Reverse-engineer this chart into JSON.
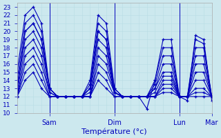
{
  "xlabel": "Température (°c)",
  "xlim": [
    0,
    72
  ],
  "ylim": [
    10,
    23.5
  ],
  "yticks": [
    10,
    11,
    12,
    13,
    14,
    15,
    16,
    17,
    18,
    19,
    20,
    21,
    22,
    23
  ],
  "xtick_positions": [
    12,
    36,
    60,
    72
  ],
  "xtick_labels": [
    "Sam",
    "Dim",
    "Lun",
    "Mar"
  ],
  "bg_color": "#cce8ee",
  "line_color": "#0000bb",
  "marker": "+",
  "series": [
    [
      0,
      15,
      3,
      22,
      6,
      23,
      9,
      21,
      12,
      13,
      15,
      12,
      18,
      12,
      21,
      12,
      24,
      12,
      27,
      14,
      30,
      22,
      33,
      21,
      36,
      13,
      39,
      12,
      42,
      12,
      45,
      12,
      48,
      10.5,
      51,
      14,
      54,
      19,
      57,
      19,
      60,
      12,
      63,
      11.5,
      66,
      19.5,
      69,
      19,
      72,
      11.5
    ],
    [
      0,
      14,
      3,
      21,
      6,
      22,
      9,
      20,
      12,
      13,
      15,
      12,
      18,
      12,
      21,
      12,
      24,
      12,
      27,
      13.5,
      30,
      21,
      33,
      20,
      36,
      13,
      39,
      12,
      42,
      12,
      45,
      12,
      48,
      12,
      51,
      14,
      54,
      18,
      57,
      18,
      60,
      12,
      63,
      12,
      66,
      19,
      69,
      18.5,
      72,
      12
    ],
    [
      0,
      13,
      3,
      20,
      6,
      21,
      9,
      19,
      12,
      13,
      15,
      12,
      18,
      12,
      21,
      12,
      24,
      12,
      27,
      13,
      30,
      20,
      33,
      19,
      36,
      12.5,
      39,
      12,
      42,
      12,
      45,
      12,
      48,
      12,
      51,
      13.5,
      54,
      17,
      57,
      17,
      60,
      12,
      63,
      12,
      66,
      18,
      69,
      18,
      72,
      12
    ],
    [
      0,
      13,
      3,
      20,
      6,
      21,
      9,
      19,
      12,
      13,
      15,
      12,
      18,
      12,
      21,
      12,
      24,
      12,
      27,
      13,
      30,
      20,
      33,
      19,
      36,
      12.5,
      39,
      12,
      42,
      12,
      45,
      12,
      48,
      12,
      51,
      13,
      54,
      16,
      57,
      16,
      60,
      12,
      63,
      12,
      66,
      17,
      69,
      17,
      72,
      12
    ],
    [
      0,
      13,
      3,
      19,
      6,
      20,
      9,
      18,
      12,
      13,
      15,
      12,
      18,
      12,
      21,
      12,
      24,
      12,
      27,
      13,
      30,
      19,
      33,
      18,
      36,
      12.5,
      39,
      12,
      42,
      12,
      45,
      12,
      48,
      12,
      51,
      13,
      54,
      15,
      57,
      15,
      60,
      12,
      63,
      12,
      66,
      16,
      69,
      16,
      72,
      12
    ],
    [
      0,
      12.5,
      3,
      18,
      6,
      19,
      9,
      17,
      12,
      12.5,
      15,
      12,
      18,
      12,
      21,
      12,
      24,
      12,
      27,
      12.5,
      30,
      18,
      33,
      17,
      36,
      12.5,
      39,
      12,
      42,
      12,
      45,
      12,
      48,
      12,
      51,
      12.5,
      54,
      14.5,
      57,
      14.5,
      60,
      12,
      63,
      12,
      66,
      15,
      69,
      15,
      72,
      12
    ],
    [
      0,
      12,
      3,
      17,
      6,
      18,
      9,
      16,
      12,
      12.5,
      15,
      12,
      18,
      12,
      21,
      12,
      24,
      12,
      27,
      12,
      30,
      17,
      33,
      16,
      36,
      12.5,
      39,
      12,
      42,
      12,
      45,
      12,
      48,
      12,
      51,
      12,
      54,
      14,
      57,
      14,
      60,
      12,
      63,
      12,
      66,
      14,
      69,
      14,
      72,
      12
    ],
    [
      0,
      12,
      3,
      16,
      6,
      17,
      9,
      15,
      12,
      12,
      15,
      12,
      18,
      12,
      21,
      12,
      24,
      12,
      27,
      12,
      30,
      16,
      33,
      15,
      36,
      12.5,
      39,
      12,
      42,
      12,
      45,
      12,
      48,
      12,
      51,
      12,
      54,
      13.5,
      57,
      13.5,
      60,
      12,
      63,
      12,
      66,
      13,
      69,
      13,
      72,
      12
    ],
    [
      0,
      12,
      3,
      15,
      6,
      16,
      9,
      14,
      12,
      12,
      15,
      12,
      18,
      12,
      21,
      12,
      24,
      12,
      27,
      12,
      30,
      15,
      33,
      14,
      36,
      12,
      39,
      12,
      42,
      12,
      45,
      12,
      48,
      12,
      51,
      12,
      54,
      13,
      57,
      13,
      60,
      12,
      63,
      12,
      66,
      12.5,
      69,
      12.5,
      72,
      12
    ],
    [
      0,
      12,
      3,
      14,
      6,
      15,
      9,
      13,
      12,
      12,
      15,
      12,
      18,
      12,
      21,
      12,
      24,
      12,
      27,
      12,
      30,
      14,
      33,
      13,
      36,
      12,
      39,
      12,
      42,
      12,
      45,
      12,
      48,
      12,
      51,
      12,
      54,
      12.5,
      57,
      12.5,
      60,
      12,
      63,
      12,
      66,
      12,
      69,
      12,
      72,
      12
    ]
  ]
}
